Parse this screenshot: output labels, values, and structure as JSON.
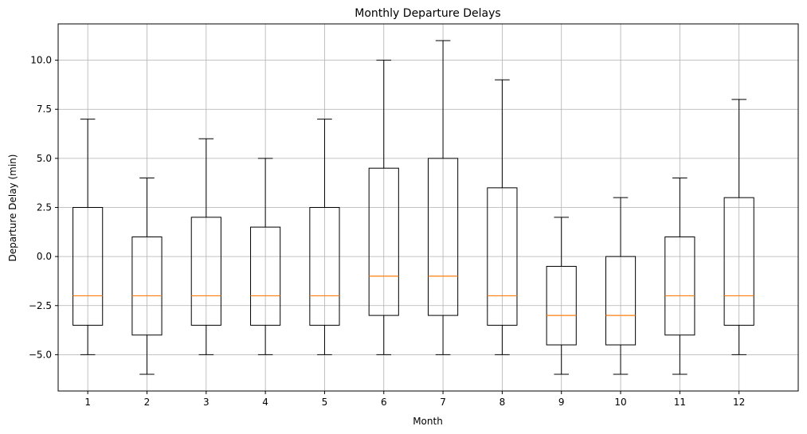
{
  "chart_data": {
    "type": "box",
    "title": "Monthly Departure Delays",
    "xlabel": "Month",
    "ylabel": "Departure Delay (min)",
    "categories": [
      "1",
      "2",
      "3",
      "4",
      "5",
      "6",
      "7",
      "8",
      "9",
      "10",
      "11",
      "12"
    ],
    "boxes": [
      {
        "whisker_low": -5,
        "q1": -3.5,
        "median": -2,
        "q3": 2.5,
        "whisker_high": 7
      },
      {
        "whisker_low": -6,
        "q1": -4,
        "median": -2,
        "q3": 1,
        "whisker_high": 4
      },
      {
        "whisker_low": -5,
        "q1": -3.5,
        "median": -2,
        "q3": 2,
        "whisker_high": 6
      },
      {
        "whisker_low": -5,
        "q1": -3.5,
        "median": -2,
        "q3": 1.5,
        "whisker_high": 5
      },
      {
        "whisker_low": -5,
        "q1": -3.5,
        "median": -2,
        "q3": 2.5,
        "whisker_high": 7
      },
      {
        "whisker_low": -5,
        "q1": -3,
        "median": -1,
        "q3": 4.5,
        "whisker_high": 10
      },
      {
        "whisker_low": -5,
        "q1": -3,
        "median": -1,
        "q3": 5,
        "whisker_high": 11
      },
      {
        "whisker_low": -5,
        "q1": -3.5,
        "median": -2,
        "q3": 3.5,
        "whisker_high": 9
      },
      {
        "whisker_low": -6,
        "q1": -4.5,
        "median": -3,
        "q3": -0.5,
        "whisker_high": 2
      },
      {
        "whisker_low": -6,
        "q1": -4.5,
        "median": -3,
        "q3": 0,
        "whisker_high": 3
      },
      {
        "whisker_low": -6,
        "q1": -4,
        "median": -2,
        "q3": 1,
        "whisker_high": 4
      },
      {
        "whisker_low": -5,
        "q1": -3.5,
        "median": -2,
        "q3": 3,
        "whisker_high": 8
      }
    ],
    "yticks": [
      "-5.0",
      "-2.5",
      "0.0",
      "2.5",
      "5.0",
      "7.5",
      "10.0"
    ],
    "ylim": [
      -6.85,
      11.85
    ],
    "grid": true,
    "colors": {
      "box": "#000000",
      "median": "#ff7f0e",
      "grid": "#b0b0b0"
    }
  }
}
